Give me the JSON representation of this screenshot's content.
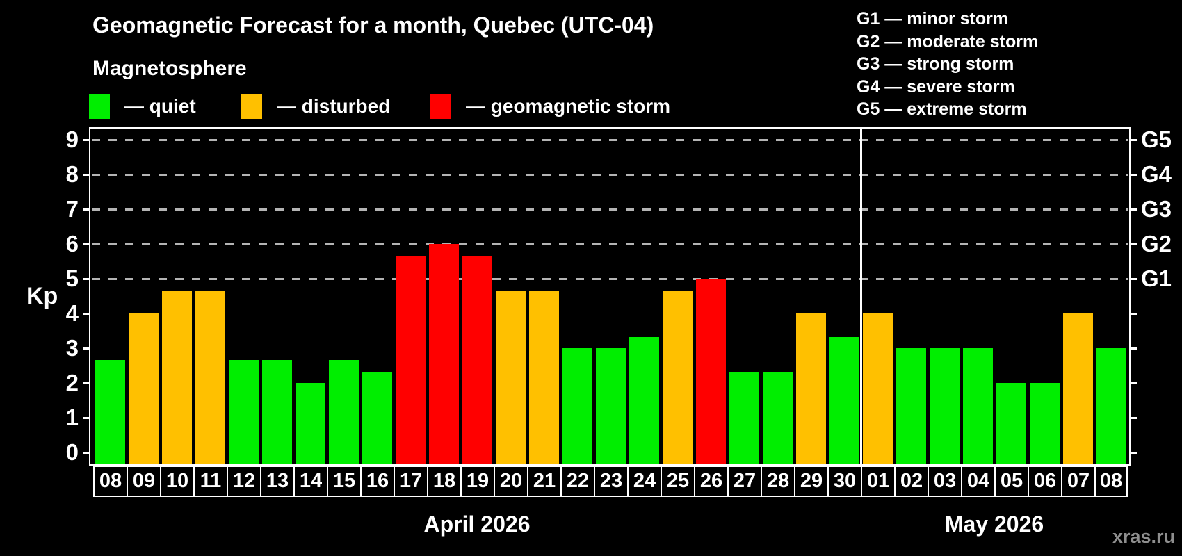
{
  "header": {
    "title": "Geomagnetic Forecast for a month, Quebec (UTC-04)",
    "subtitle": "Magnetosphere",
    "legend": [
      {
        "key": "quiet",
        "label": "— quiet",
        "color": "#00ee00"
      },
      {
        "key": "disturbed",
        "label": "— disturbed",
        "color": "#ffc000"
      },
      {
        "key": "storm",
        "label": "— geomagnetic storm",
        "color": "#ff0000"
      }
    ]
  },
  "storm_scale_legend": [
    "G1 — minor storm",
    "G2 — moderate storm",
    "G3 — strong storm",
    "G4 — severe storm",
    "G5 — extreme storm"
  ],
  "chart_data": {
    "type": "bar",
    "ylabel": "Kp",
    "ylim": [
      0,
      9
    ],
    "yticks": [
      0,
      1,
      2,
      3,
      4,
      5,
      6,
      7,
      8,
      9
    ],
    "gridlines_at": [
      5,
      6,
      7,
      8,
      9
    ],
    "grid_style": "dashed horizontal, storm levels only",
    "right_axis": [
      {
        "kp": 5,
        "label": "G1"
      },
      {
        "kp": 6,
        "label": "G2"
      },
      {
        "kp": 7,
        "label": "G3"
      },
      {
        "kp": 8,
        "label": "G4"
      },
      {
        "kp": 9,
        "label": "G5"
      }
    ],
    "months": [
      {
        "label": "April 2026",
        "days": 23
      },
      {
        "label": "May 2026",
        "days": 8
      }
    ],
    "categories": [
      "08",
      "09",
      "10",
      "11",
      "12",
      "13",
      "14",
      "15",
      "16",
      "17",
      "18",
      "19",
      "20",
      "21",
      "22",
      "23",
      "24",
      "25",
      "26",
      "27",
      "28",
      "29",
      "30",
      "01",
      "02",
      "03",
      "04",
      "05",
      "06",
      "07",
      "08"
    ],
    "values": [
      2.67,
      4.0,
      4.67,
      4.67,
      2.67,
      2.67,
      2.0,
      2.67,
      2.33,
      5.67,
      6.0,
      5.67,
      4.67,
      4.67,
      3.0,
      3.0,
      3.33,
      4.67,
      5.0,
      2.33,
      2.33,
      4.0,
      3.33,
      4.0,
      3.0,
      3.0,
      3.0,
      2.0,
      2.0,
      4.0,
      3.0
    ],
    "statuses": [
      "quiet",
      "disturbed",
      "disturbed",
      "disturbed",
      "quiet",
      "quiet",
      "quiet",
      "quiet",
      "quiet",
      "storm",
      "storm",
      "storm",
      "disturbed",
      "disturbed",
      "quiet",
      "quiet",
      "quiet",
      "disturbed",
      "storm",
      "quiet",
      "quiet",
      "disturbed",
      "quiet",
      "disturbed",
      "quiet",
      "quiet",
      "quiet",
      "quiet",
      "quiet",
      "disturbed",
      "quiet"
    ],
    "colors": {
      "quiet": "#00ee00",
      "disturbed": "#ffc000",
      "storm": "#ff0000"
    }
  },
  "watermark": "xras.ru"
}
